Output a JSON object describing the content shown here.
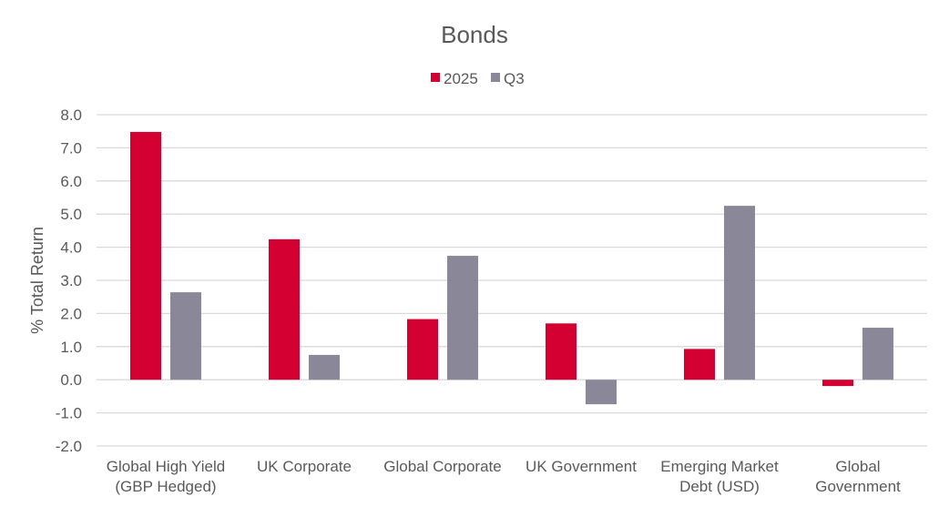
{
  "chart_data": {
    "type": "bar",
    "title": "Bonds",
    "xlabel": "",
    "ylabel": "% Total Return",
    "ylim": [
      -2.0,
      8.0
    ],
    "yticks": [
      "8.0",
      "7.0",
      "6.0",
      "5.0",
      "4.0",
      "3.0",
      "2.0",
      "1.0",
      "0.0",
      "-1.0",
      "-2.0"
    ],
    "grid": true,
    "legend_position": "top",
    "categories": [
      [
        "Global High Yield",
        "(GBP Hedged)"
      ],
      [
        "UK Corporate"
      ],
      [
        "Global Corporate"
      ],
      [
        "UK Government"
      ],
      [
        "Emerging Market",
        "Debt (USD)"
      ],
      [
        "Global",
        "Government"
      ]
    ],
    "series": [
      {
        "name": "2025",
        "color": "#D50032",
        "values": [
          7.48,
          4.24,
          1.83,
          1.7,
          0.93,
          -0.19
        ]
      },
      {
        "name": "Q3",
        "color": "#8A8898",
        "values": [
          2.64,
          0.75,
          3.74,
          -0.74,
          5.25,
          1.57
        ]
      }
    ]
  }
}
